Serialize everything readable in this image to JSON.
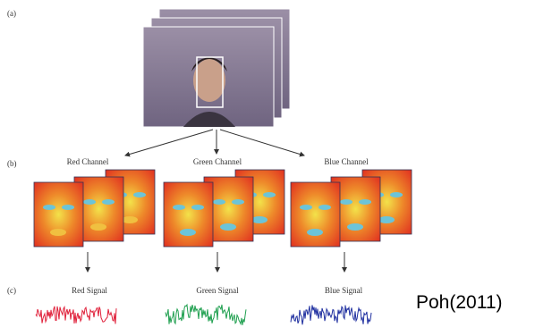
{
  "panels": {
    "a": "(a)",
    "b": "(b)",
    "c": "(c)"
  },
  "channels": [
    "Red Channel",
    "Green Channel",
    "Blue Channel"
  ],
  "signals": [
    "Red Signal",
    "Green Signal",
    "Blue Signal"
  ],
  "citation": "Poh(2011)"
}
